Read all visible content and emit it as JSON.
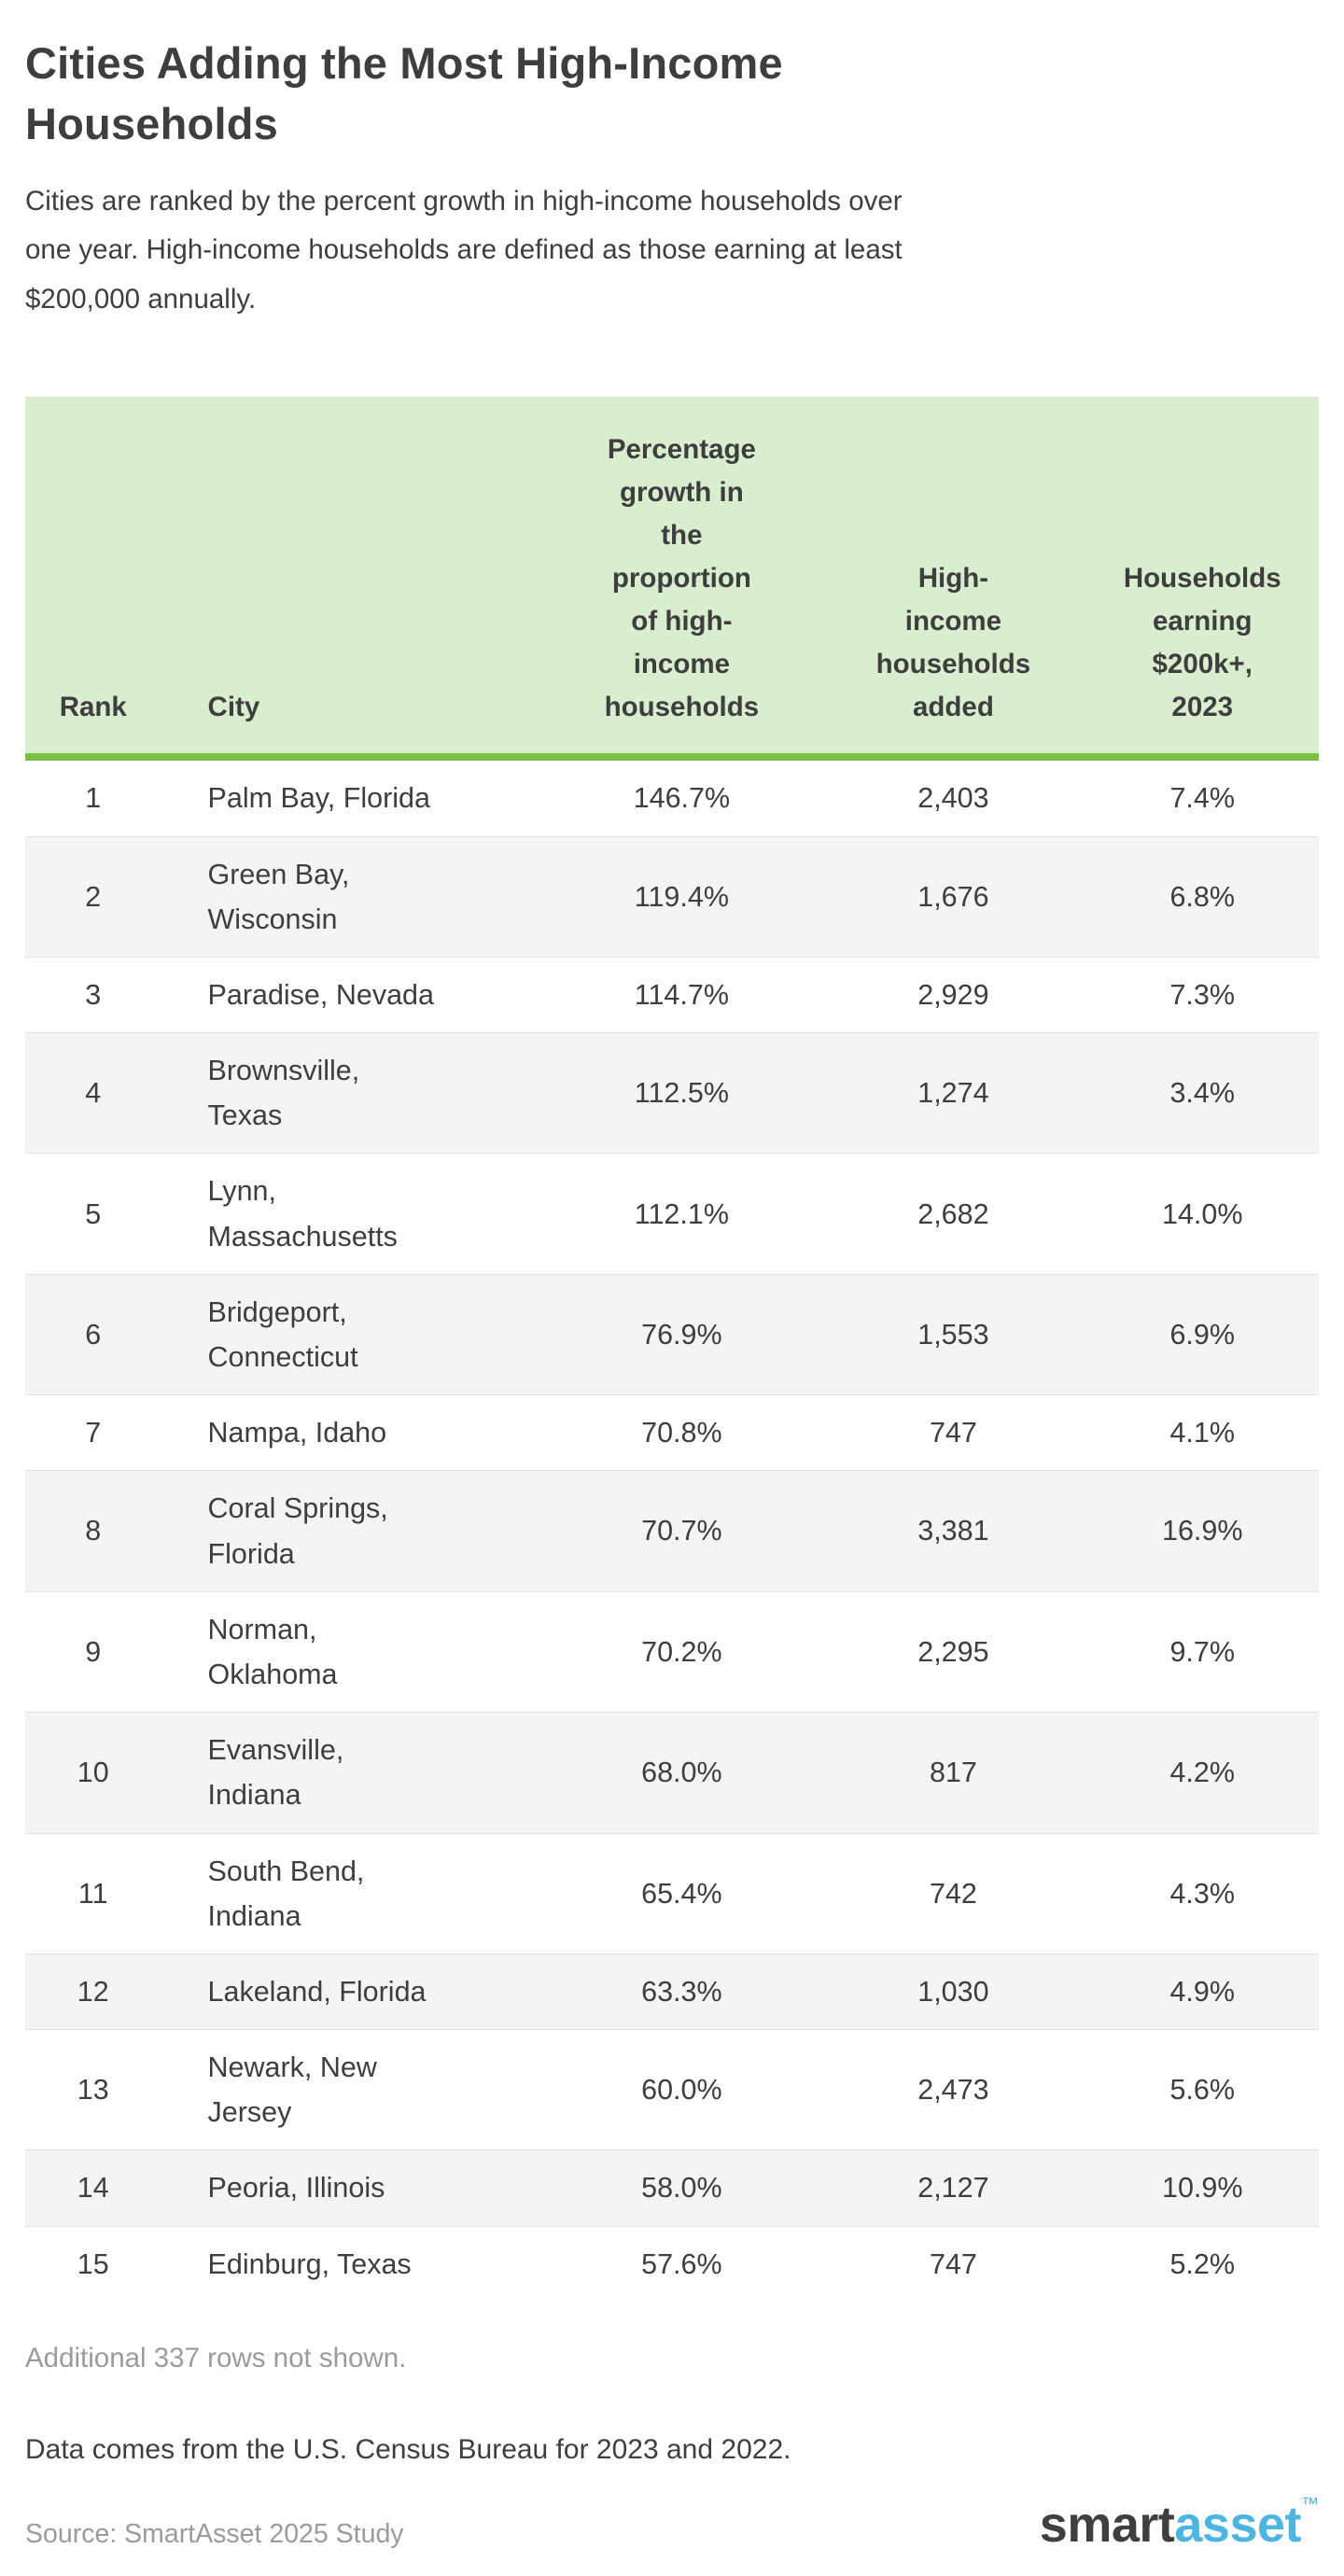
{
  "page": {
    "subtitle": "Cities are ranked by the percent growth in high-income households over\none year. High-income households are defined as those earning at least\n$200,000 annually.",
    "note_rows_hidden": "Additional 337 rows not shown.",
    "data_note": "Data comes from the U.S. Census Bureau for 2023 and 2022.",
    "source": "Source: SmartAsset 2025 Study",
    "logo": {
      "part1": "smart",
      "part2": "asset",
      "tm": "™"
    }
  },
  "colors": {
    "header_bg": "#d8eecf",
    "header_border": "#7ac143",
    "row_alt_bg": "#f4f4f4",
    "row_divider": "#e2e2e2",
    "text_dark": "#3e3e3e",
    "text_gray": "#9b9b9b",
    "logo_dark": "#3f3f3f",
    "logo_blue": "#4db5e2"
  },
  "chart_data": {
    "type": "table",
    "title": "Cities Adding the Most High-Income\nHouseholds",
    "columns": [
      {
        "label": "Rank",
        "align": "center"
      },
      {
        "label": "City",
        "align": "left"
      },
      {
        "label": "Percentage\ngrowth in\nthe\nproportion\nof high-\nincome\nhouseholds",
        "align": "center"
      },
      {
        "label": "High-\nincome\nhouseholds\nadded",
        "align": "center"
      },
      {
        "label": "Households\nearning\n$200k+,\n2023",
        "align": "center"
      }
    ],
    "rows": [
      {
        "rank": "1",
        "city": "Palm Bay, Florida",
        "growth": "146.7%",
        "added": "2,403",
        "share": "7.4%"
      },
      {
        "rank": "2",
        "city": "Green Bay,\nWisconsin",
        "growth": "119.4%",
        "added": "1,676",
        "share": "6.8%"
      },
      {
        "rank": "3",
        "city": "Paradise, Nevada",
        "growth": "114.7%",
        "added": "2,929",
        "share": "7.3%"
      },
      {
        "rank": "4",
        "city": "Brownsville,\nTexas",
        "growth": "112.5%",
        "added": "1,274",
        "share": "3.4%"
      },
      {
        "rank": "5",
        "city": "Lynn,\nMassachusetts",
        "growth": "112.1%",
        "added": "2,682",
        "share": "14.0%"
      },
      {
        "rank": "6",
        "city": "Bridgeport,\nConnecticut",
        "growth": "76.9%",
        "added": "1,553",
        "share": "6.9%"
      },
      {
        "rank": "7",
        "city": "Nampa, Idaho",
        "growth": "70.8%",
        "added": "747",
        "share": "4.1%"
      },
      {
        "rank": "8",
        "city": "Coral Springs,\nFlorida",
        "growth": "70.7%",
        "added": "3,381",
        "share": "16.9%"
      },
      {
        "rank": "9",
        "city": "Norman,\nOklahoma",
        "growth": "70.2%",
        "added": "2,295",
        "share": "9.7%"
      },
      {
        "rank": "10",
        "city": "Evansville,\nIndiana",
        "growth": "68.0%",
        "added": "817",
        "share": "4.2%"
      },
      {
        "rank": "11",
        "city": "South Bend,\nIndiana",
        "growth": "65.4%",
        "added": "742",
        "share": "4.3%"
      },
      {
        "rank": "12",
        "city": "Lakeland, Florida",
        "growth": "63.3%",
        "added": "1,030",
        "share": "4.9%"
      },
      {
        "rank": "13",
        "city": "Newark, New\nJersey",
        "growth": "60.0%",
        "added": "2,473",
        "share": "5.6%"
      },
      {
        "rank": "14",
        "city": "Peoria, Illinois",
        "growth": "58.0%",
        "added": "2,127",
        "share": "10.9%"
      },
      {
        "rank": "15",
        "city": "Edinburg, Texas",
        "growth": "57.6%",
        "added": "747",
        "share": "5.2%"
      }
    ]
  }
}
